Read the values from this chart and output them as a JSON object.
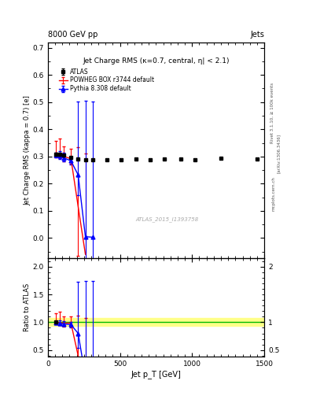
{
  "title": "Jet Charge RMS (κ=0.7, central, η| < 2.1)",
  "header_left": "8000 GeV pp",
  "header_right": "Jets",
  "watermark": "ATLAS_2015_I1393758",
  "right_label_top": "Rivet 3.1.10, ≥ 100k events",
  "right_label_mid": "[arXiv:1306.3436]",
  "right_label_bot": "mcplots.cern.ch",
  "ylabel_main": "Jet Charge RMS (kappa = 0.7) [e]",
  "ylabel_ratio": "Ratio to ATLAS",
  "xlabel": "Jet p_T [GeV]",
  "xlim": [
    0,
    1500
  ],
  "ylim_main": [
    -0.075,
    0.72
  ],
  "ylim_ratio": [
    0.38,
    2.15
  ],
  "yticks_main": [
    0.0,
    0.1,
    0.2,
    0.3,
    0.4,
    0.5,
    0.6,
    0.7
  ],
  "yticks_ratio": [
    0.5,
    1.0,
    1.5,
    2.0
  ],
  "yticks_ratio_right": [
    0.5,
    1.0,
    2.0
  ],
  "atlas_x": [
    55,
    80,
    110,
    160,
    210,
    260,
    310,
    410,
    510,
    610,
    710,
    810,
    920,
    1020,
    1200,
    1450
  ],
  "atlas_y": [
    0.308,
    0.307,
    0.304,
    0.296,
    0.291,
    0.289,
    0.289,
    0.289,
    0.289,
    0.29,
    0.289,
    0.29,
    0.29,
    0.289,
    0.295,
    0.29
  ],
  "atlas_yerr": [
    0.006,
    0.005,
    0.004,
    0.003,
    0.003,
    0.002,
    0.002,
    0.002,
    0.002,
    0.002,
    0.002,
    0.002,
    0.002,
    0.002,
    0.002,
    0.002
  ],
  "atlas_color": "#000000",
  "powheg_x": [
    55,
    80,
    110,
    160,
    210,
    260
  ],
  "powheg_y": [
    0.308,
    0.305,
    0.3,
    0.292,
    0.115,
    -0.06
  ],
  "powheg_yerr_lo": [
    0.01,
    0.012,
    0.018,
    0.018,
    0.18,
    0.37
  ],
  "powheg_yerr_hi": [
    0.05,
    0.062,
    0.038,
    0.035,
    0.22,
    0.37
  ],
  "powheg_color": "#ff0000",
  "pythia_x": [
    55,
    80,
    110,
    160,
    210,
    260,
    310
  ],
  "pythia_y": [
    0.306,
    0.302,
    0.295,
    0.284,
    0.232,
    0.005,
    0.003
  ],
  "pythia_yerr_lo": [
    0.008,
    0.01,
    0.012,
    0.014,
    0.075,
    0.52,
    0.5
  ],
  "pythia_yerr_hi": [
    0.008,
    0.018,
    0.018,
    0.014,
    0.27,
    0.5,
    0.5
  ],
  "pythia_color": "#0000ff",
  "ratio_atlas_band_color": "#ffff88",
  "ratio_line_color": "#00bb00",
  "ratio_powheg_x": [
    55,
    80,
    110,
    160,
    210,
    260
  ],
  "ratio_powheg_y": [
    1.0,
    0.993,
    0.985,
    0.984,
    0.395,
    -0.2
  ],
  "ratio_powheg_yerr_lo": [
    0.032,
    0.04,
    0.059,
    0.061,
    0.62,
    1.27
  ],
  "ratio_powheg_yerr_hi": [
    0.162,
    0.202,
    0.125,
    0.118,
    0.72,
    1.27
  ],
  "ratio_pythia_x": [
    55,
    80,
    110,
    160,
    210,
    260,
    310
  ],
  "ratio_pythia_y": [
    0.993,
    0.981,
    0.967,
    0.959,
    0.798,
    0.017,
    0.01
  ],
  "ratio_pythia_yerr_lo": [
    0.026,
    0.033,
    0.039,
    0.047,
    0.258,
    1.8,
    1.73
  ],
  "ratio_pythia_yerr_hi": [
    0.026,
    0.059,
    0.059,
    0.047,
    0.93,
    1.73,
    1.73
  ]
}
